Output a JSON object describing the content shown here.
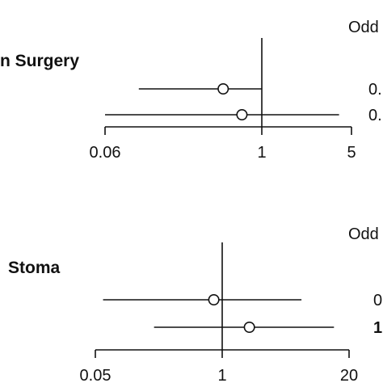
{
  "chart_data": [
    {
      "type": "forest",
      "label": "n Surgery",
      "header": "Odd",
      "scale": "log",
      "xlim": [
        0.06,
        5
      ],
      "ticks": [
        {
          "value": 0.06,
          "label": "0.06"
        },
        {
          "value": 1,
          "label": "1"
        },
        {
          "value": 5,
          "label": "5"
        }
      ],
      "reference": 1,
      "rows": [
        {
          "estimate": 0.5,
          "lower": 0.11,
          "upper": 1.0,
          "value_text": "0.",
          "value_bold": false
        },
        {
          "estimate": 0.7,
          "lower": 0.06,
          "upper": 4.0,
          "value_text": "0.",
          "value_bold": false
        }
      ]
    },
    {
      "type": "forest",
      "label": "Stoma",
      "header": "Odd",
      "scale": "log",
      "xlim": [
        0.05,
        20
      ],
      "ticks": [
        {
          "value": 0.05,
          "label": "0.05"
        },
        {
          "value": 1,
          "label": "1"
        },
        {
          "value": 20,
          "label": "20"
        }
      ],
      "reference": 1,
      "rows": [
        {
          "estimate": 0.82,
          "lower": 0.06,
          "upper": 6.5,
          "value_text": "0",
          "value_bold": false
        },
        {
          "estimate": 1.9,
          "lower": 0.2,
          "upper": 14,
          "value_text": "1",
          "value_bold": true
        }
      ]
    }
  ]
}
